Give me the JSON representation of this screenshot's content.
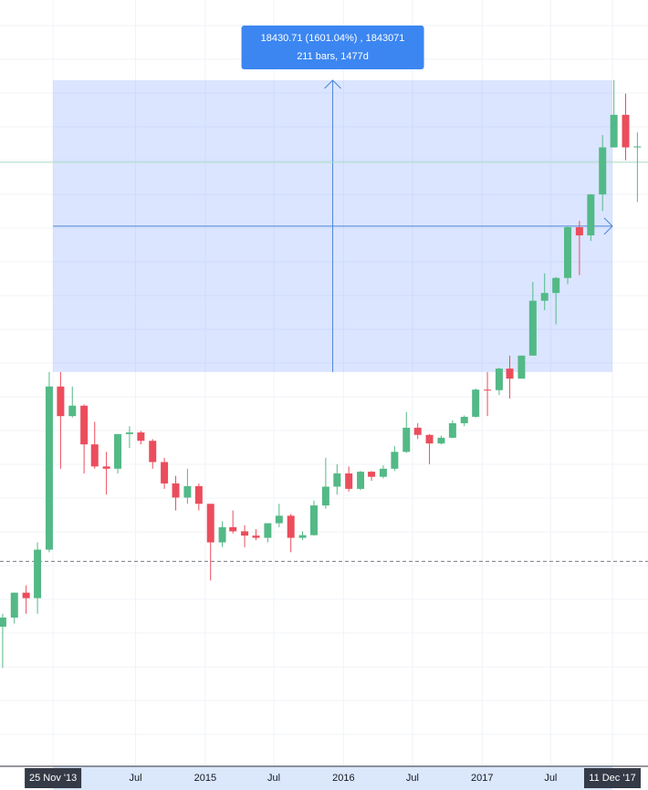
{
  "chart_data": {
    "type": "candlestick",
    "x": [
      "2013-07-15",
      "2013-08-15",
      "2013-09-15",
      "2013-10-15",
      "2013-11-15",
      "2013-12-15",
      "2014-01-15",
      "2014-02-15",
      "2014-03-15",
      "2014-04-15",
      "2014-05-15",
      "2014-06-15",
      "2014-07-15",
      "2014-08-15",
      "2014-09-15",
      "2014-10-15",
      "2014-11-15",
      "2014-12-15",
      "2015-01-15",
      "2015-02-15",
      "2015-03-15",
      "2015-04-15",
      "2015-05-15",
      "2015-06-15",
      "2015-07-15",
      "2015-08-15",
      "2015-09-15",
      "2015-10-15",
      "2015-11-15",
      "2015-12-15",
      "2016-01-15",
      "2016-02-15",
      "2016-03-15",
      "2016-04-15",
      "2016-05-15",
      "2016-06-15",
      "2016-07-15",
      "2016-08-15",
      "2016-09-15",
      "2016-10-15",
      "2016-11-15",
      "2016-12-15",
      "2017-01-15",
      "2017-02-15",
      "2017-03-15",
      "2017-04-15",
      "2017-05-15",
      "2017-06-15",
      "2017-07-15",
      "2017-08-15",
      "2017-09-15",
      "2017-10-15",
      "2017-11-15",
      "2017-12-15",
      "2018-01-15",
      "2018-02-15"
    ],
    "open": [
      97,
      106,
      135,
      128,
      205,
      1000,
      750,
      830,
      570,
      460,
      450,
      630,
      640,
      590,
      480,
      390,
      340,
      380,
      320,
      220,
      255,
      245,
      235,
      230,
      265,
      285,
      230,
      236,
      315,
      378,
      430,
      370,
      437,
      416,
      450,
      530,
      670,
      625,
      575,
      608,
      700,
      745,
      970,
      965,
      1190,
      1080,
      1350,
      2300,
      2480,
      2870,
      4700,
      4340,
      6460,
      10200,
      14000,
      10200
    ],
    "high": [
      110,
      135,
      145,
      220,
      1151,
      1150,
      1000,
      840,
      710,
      530,
      630,
      680,
      650,
      600,
      500,
      420,
      450,
      390,
      320,
      270,
      300,
      260,
      250,
      265,
      320,
      290,
      245,
      330,
      500,
      470,
      460,
      440,
      440,
      465,
      560,
      780,
      700,
      630,
      620,
      720,
      755,
      980,
      1150,
      1200,
      1350,
      1350,
      2760,
      3000,
      2900,
      4750,
      5000,
      6480,
      11500,
      19582,
      17200,
      11800
    ],
    "low": [
      65,
      100,
      110,
      110,
      200,
      450,
      740,
      430,
      450,
      350,
      430,
      550,
      570,
      450,
      370,
      300,
      320,
      300,
      152,
      210,
      240,
      210,
      225,
      220,
      255,
      200,
      225,
      235,
      305,
      350,
      360,
      365,
      400,
      410,
      440,
      525,
      600,
      470,
      570,
      605,
      680,
      740,
      750,
      920,
      890,
      1080,
      1350,
      2100,
      1830,
      2700,
      2950,
      4110,
      5500,
      10200,
      9000,
      6000
    ],
    "close": [
      106,
      135,
      128,
      205,
      1000,
      750,
      830,
      570,
      460,
      450,
      630,
      640,
      590,
      480,
      390,
      340,
      380,
      320,
      220,
      255,
      245,
      235,
      230,
      265,
      285,
      230,
      236,
      315,
      378,
      430,
      370,
      437,
      416,
      450,
      530,
      670,
      625,
      575,
      608,
      700,
      745,
      970,
      965,
      1190,
      1080,
      1350,
      2300,
      2480,
      2870,
      4700,
      4340,
      6460,
      10200,
      14000,
      10200,
      10300
    ],
    "up_color": "#53b987",
    "down_color": "#eb4d5c",
    "xlim": [
      "2013-07-08",
      "2018-03-15"
    ],
    "ylim": [
      25,
      42700
    ],
    "log_scale": true,
    "grid": true,
    "xticks": [
      {
        "value": "2013-11-25",
        "label": "25 Nov '13"
      },
      {
        "value": "2014-07-01",
        "label": "Jul"
      },
      {
        "value": "2015-01-01",
        "label": "2015"
      },
      {
        "value": "2015-07-01",
        "label": "Jul"
      },
      {
        "value": "2016-01-01",
        "label": "2016"
      },
      {
        "value": "2016-07-01",
        "label": "Jul"
      },
      {
        "value": "2017-01-01",
        "label": "2017"
      },
      {
        "value": "2017-07-01",
        "label": "Jul"
      },
      {
        "value": "2017-12-11",
        "label": "11 Dec '17"
      }
    ],
    "reference_lines": [
      {
        "value": 183,
        "color": "#787b86",
        "style": "dashed"
      },
      {
        "value": 8830,
        "color": "#a8dcc0",
        "style": "solid"
      }
    ],
    "measure": {
      "start_date": "2013-11-25",
      "end_date": "2017-12-11",
      "start_price": 1151,
      "end_price": 19582,
      "label_lines": [
        "18430.71 (1601.04%) , 1843071",
        "211 bars, 1477d"
      ]
    }
  }
}
